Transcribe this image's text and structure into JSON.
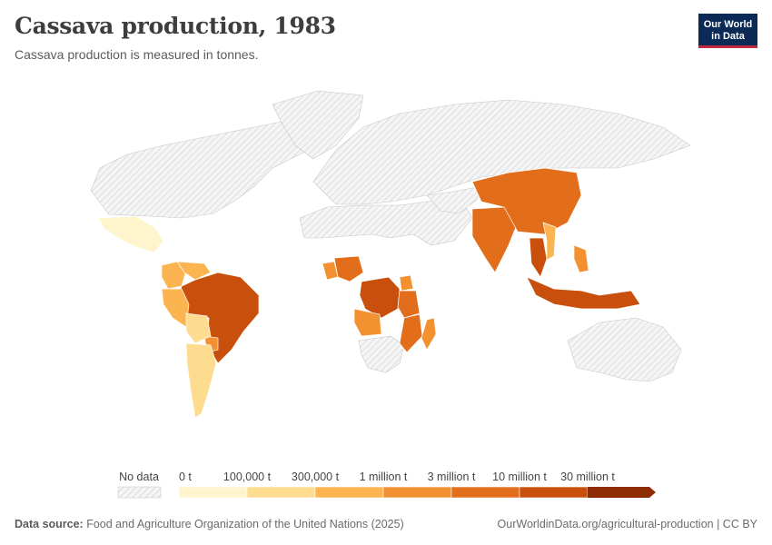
{
  "header": {
    "title": "Cassava production, 1983",
    "subtitle": "Cassava production is measured in tonnes.",
    "logo_line1": "Our World",
    "logo_line2": "in Data"
  },
  "legend": {
    "no_data_label": "No data",
    "bins": [
      {
        "label": "0 t",
        "color": "#fef5cc"
      },
      {
        "label": "100,000 t",
        "color": "#fddb8f"
      },
      {
        "label": "300,000 t",
        "color": "#fbb450"
      },
      {
        "label": "1 million t",
        "color": "#f39130"
      },
      {
        "label": "3 million t",
        "color": "#e26d1a"
      },
      {
        "label": "10 million t",
        "color": "#c94f0c"
      },
      {
        "label": "30 million t",
        "color": "#8e2c05"
      }
    ]
  },
  "map": {
    "no_data_color": "#e8e8e8",
    "regions": [
      {
        "name": "Brazil",
        "bin": 5
      },
      {
        "name": "Thailand",
        "bin": 5
      },
      {
        "name": "Indonesia",
        "bin": 5
      },
      {
        "name": "Zaire",
        "bin": 5
      },
      {
        "name": "Nigeria",
        "bin": 4
      },
      {
        "name": "India",
        "bin": 4
      },
      {
        "name": "China",
        "bin": 4
      },
      {
        "name": "Tanzania",
        "bin": 4
      },
      {
        "name": "Mozambique",
        "bin": 4
      },
      {
        "name": "Madagascar",
        "bin": 3
      },
      {
        "name": "Uganda",
        "bin": 3
      },
      {
        "name": "Ghana",
        "bin": 3
      },
      {
        "name": "Angola",
        "bin": 3
      },
      {
        "name": "Colombia",
        "bin": 2
      },
      {
        "name": "Venezuela",
        "bin": 2
      },
      {
        "name": "Paraguay",
        "bin": 3
      },
      {
        "name": "Peru",
        "bin": 2
      },
      {
        "name": "Philippines",
        "bin": 3
      },
      {
        "name": "Vietnam",
        "bin": 2
      },
      {
        "name": "Argentina",
        "bin": 1
      },
      {
        "name": "Bolivia",
        "bin": 1
      },
      {
        "name": "Mexico",
        "bin": 0
      }
    ]
  },
  "footer": {
    "source_label": "Data source:",
    "source_text": "Food and Agriculture Organization of the United Nations (2025)",
    "url_text": "OurWorldinData.org/agricultural-production | CC BY"
  }
}
